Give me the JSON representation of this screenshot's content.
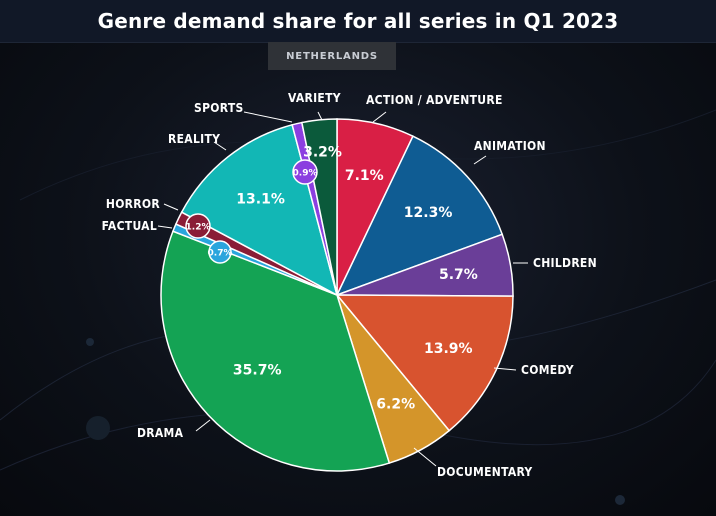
{
  "title": "Genre demand share for all series in Q1 2023",
  "subtitle": "NETHERLANDS",
  "chart_data": {
    "type": "pie",
    "title": "Genre demand share for all series in Q1 2023",
    "subtitle": "NETHERLANDS",
    "slices": [
      {
        "name": "ACTION / ADVENTURE",
        "value": 7.1,
        "label": "7.1%",
        "color": "#d91f45"
      },
      {
        "name": "ANIMATION",
        "value": 12.3,
        "label": "12.3%",
        "color": "#0f5c93"
      },
      {
        "name": "CHILDREN",
        "value": 5.7,
        "label": "5.7%",
        "color": "#6a3e98"
      },
      {
        "name": "COMEDY",
        "value": 13.9,
        "label": "13.9%",
        "color": "#d8532f"
      },
      {
        "name": "DOCUMENTARY",
        "value": 6.2,
        "label": "6.2%",
        "color": "#d4952a"
      },
      {
        "name": "DRAMA",
        "value": 35.7,
        "label": "35.7%",
        "color": "#14a354"
      },
      {
        "name": "FACTUAL",
        "value": 0.7,
        "label": "0.7%",
        "color": "#2aa5dd"
      },
      {
        "name": "HORROR",
        "value": 1.2,
        "label": "1.2%",
        "color": "#8a1c36"
      },
      {
        "name": "REALITY",
        "value": 13.1,
        "label": "13.1%",
        "color": "#12b7b5"
      },
      {
        "name": "SPORTS",
        "value": 0.9,
        "label": "0.9%",
        "color": "#8b3fe0"
      },
      {
        "name": "VARIETY",
        "value": 3.2,
        "label": "3.2%",
        "color": "#0b5a3b"
      }
    ],
    "start_position": "12 o'clock",
    "direction": "clockwise",
    "legend": "none; slices labelled directly"
  }
}
